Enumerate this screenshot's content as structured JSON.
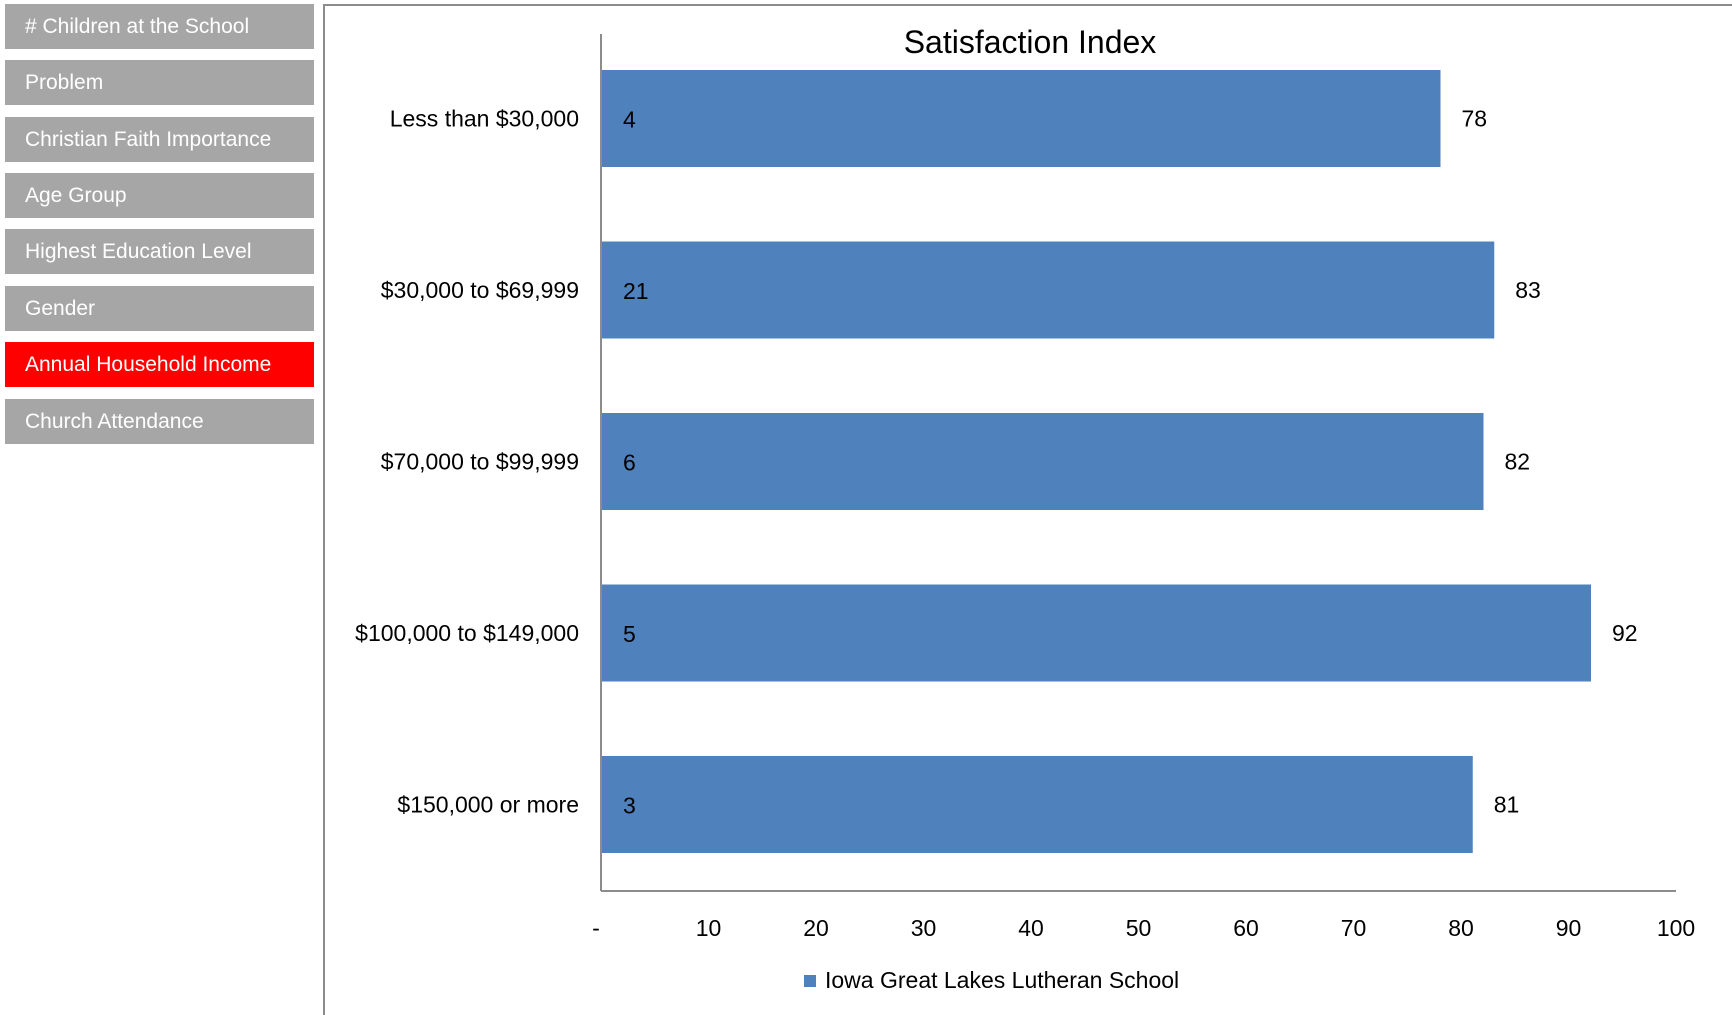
{
  "sidebar": {
    "items": [
      {
        "label": "# Children at the School",
        "active": false
      },
      {
        "label": "Problem",
        "active": false
      },
      {
        "label": "Christian Faith Importance",
        "active": false
      },
      {
        "label": "Age Group",
        "active": false
      },
      {
        "label": "Highest Education Level",
        "active": false
      },
      {
        "label": "Gender",
        "active": false
      },
      {
        "label": "Annual Household Income",
        "active": true
      },
      {
        "label": "Church Attendance",
        "active": false
      }
    ]
  },
  "colors": {
    "bar": "#4f81bd",
    "nav_inactive": "#a6a6a6",
    "nav_active": "#ff0000"
  },
  "chart_data": {
    "type": "bar",
    "orientation": "horizontal",
    "title": "Satisfaction Index",
    "categories": [
      "Less than $30,000",
      "$30,000 to $69,999",
      "$70,000 to $99,999",
      "$100,000 to $149,000",
      "$150,000 or more"
    ],
    "series": [
      {
        "name": "Iowa Great Lakes Lutheran School",
        "values": [
          78,
          83,
          82,
          92,
          81
        ],
        "counts": [
          4,
          21,
          6,
          5,
          3
        ]
      }
    ],
    "xlim": [
      0,
      100
    ],
    "xticks": [
      0,
      10,
      20,
      30,
      40,
      50,
      60,
      70,
      80,
      90,
      100
    ],
    "xtick_labels": [
      "-",
      "10",
      "20",
      "30",
      "40",
      "50",
      "60",
      "70",
      "80",
      "90",
      "100"
    ],
    "grid": false,
    "legend_position": "bottom"
  }
}
